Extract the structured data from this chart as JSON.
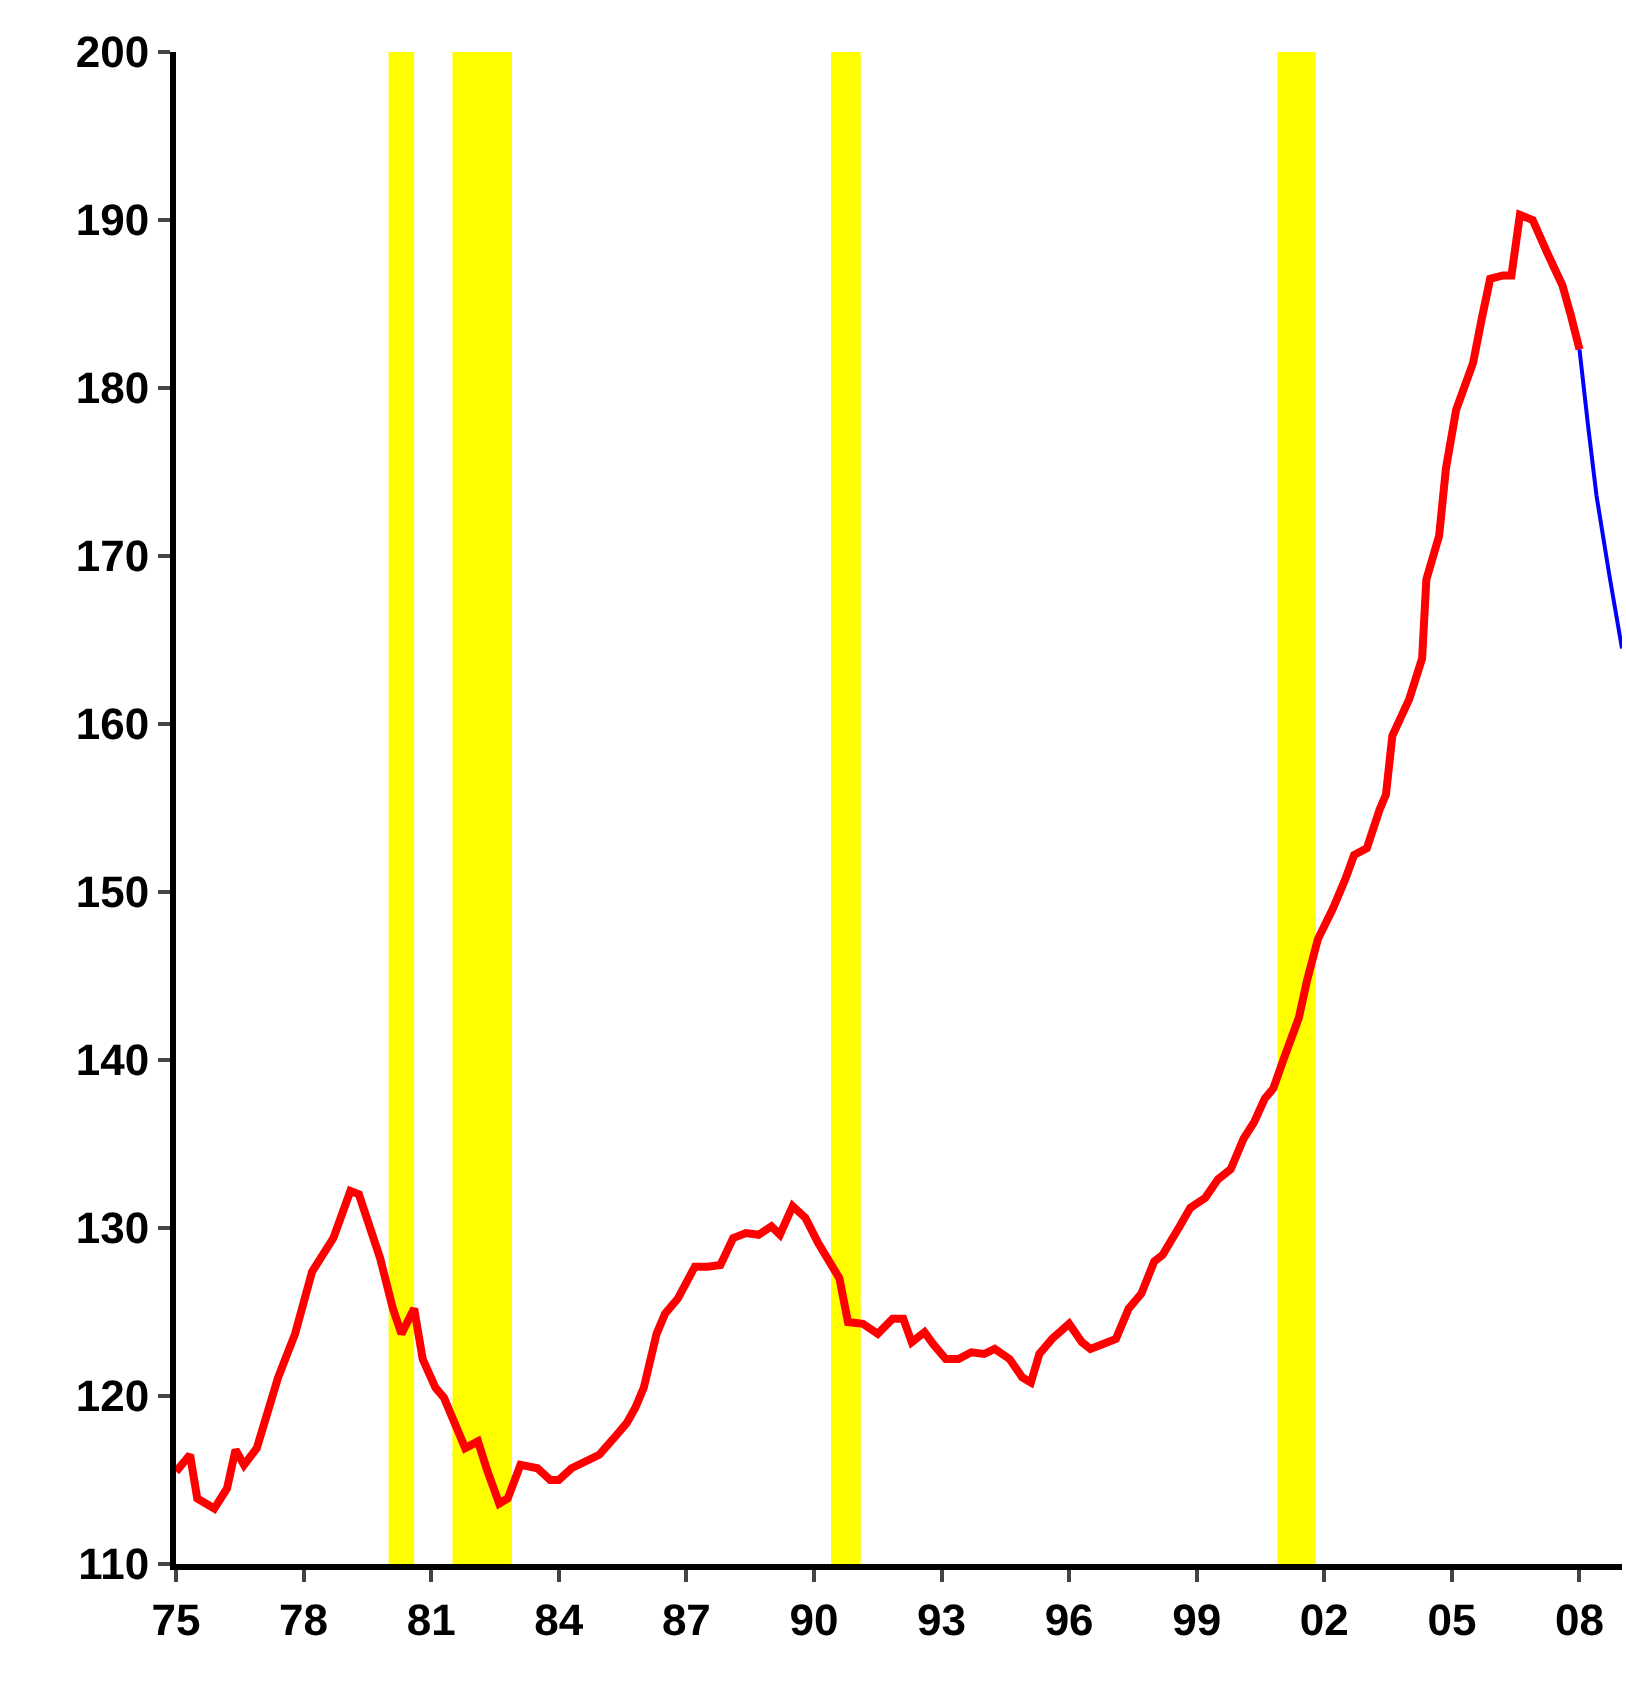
{
  "chart_data": {
    "type": "line",
    "xlim": [
      1975,
      2009
    ],
    "ylim": [
      110,
      200
    ],
    "xticks": [
      {
        "value": 1975,
        "label": "75"
      },
      {
        "value": 1978,
        "label": "78"
      },
      {
        "value": 1981,
        "label": "81"
      },
      {
        "value": 1984,
        "label": "84"
      },
      {
        "value": 1987,
        "label": "87"
      },
      {
        "value": 1990,
        "label": "90"
      },
      {
        "value": 1993,
        "label": "93"
      },
      {
        "value": 1996,
        "label": "96"
      },
      {
        "value": 1999,
        "label": "99"
      },
      {
        "value": 2002,
        "label": "02"
      },
      {
        "value": 2005,
        "label": "05"
      },
      {
        "value": 2008,
        "label": "08"
      }
    ],
    "yticks": [
      110,
      120,
      130,
      140,
      150,
      160,
      170,
      180,
      190,
      200
    ],
    "grid": false,
    "marker": "none",
    "line_style": "solid",
    "bands": [
      {
        "axis": "x",
        "from": 1980.0,
        "to": 1980.6,
        "color": "#ffff00"
      },
      {
        "axis": "x",
        "from": 1981.5,
        "to": 1982.9,
        "color": "#ffff00"
      },
      {
        "axis": "x",
        "from": 1990.4,
        "to": 1991.1,
        "color": "#ffff00"
      },
      {
        "axis": "x",
        "from": 2000.9,
        "to": 2001.8,
        "color": "#ffff00"
      }
    ],
    "series": [
      {
        "color": "#ff0000",
        "x": [
          1975.0,
          1975.33,
          1975.5,
          1975.9,
          1976.2,
          1976.4,
          1976.6,
          1976.9,
          1977.4,
          1977.8,
          1978.2,
          1978.7,
          1979.1,
          1979.3,
          1979.8,
          1980.1,
          1980.3,
          1980.6,
          1980.8,
          1981.1,
          1981.3,
          1981.5,
          1981.8,
          1982.1,
          1982.3,
          1982.6,
          1982.8,
          1983.1,
          1983.5,
          1983.8,
          1984.0,
          1984.3,
          1984.95,
          1985.3,
          1985.6,
          1985.8,
          1986.0,
          1986.3,
          1986.5,
          1986.8,
          1987.2,
          1987.5,
          1987.8,
          1988.1,
          1988.4,
          1988.7,
          1989.0,
          1989.2,
          1989.5,
          1989.8,
          1990.1,
          1990.6,
          1990.8,
          1991.15,
          1991.5,
          1991.85,
          1992.1,
          1992.3,
          1992.6,
          1992.8,
          1993.1,
          1993.4,
          1993.7,
          1994.0,
          1994.25,
          1994.6,
          1994.9,
          1995.1,
          1995.3,
          1995.6,
          1996.0,
          1996.3,
          1996.5,
          1996.8,
          1997.1,
          1997.4,
          1997.7,
          1998.0,
          1998.2,
          1998.6,
          1998.85,
          1999.2,
          1999.5,
          1999.8,
          2000.1,
          2000.35,
          2000.6,
          2000.8,
          2001.05,
          2001.4,
          2001.6,
          2001.85,
          2002.2,
          2002.5,
          2002.7,
          2003.0,
          2003.3,
          2003.45,
          2003.6,
          2004.0,
          2004.3,
          2004.4,
          2004.7,
          2004.86,
          2005.1,
          2005.5,
          2005.7,
          2005.9,
          2006.2,
          2006.4,
          2006.6,
          2006.9,
          2007.25,
          2007.6,
          2007.8,
          2008.0
        ],
        "values": [
          115.5,
          116.5,
          113.9,
          113.3,
          114.5,
          116.8,
          115.9,
          116.9,
          121.1,
          123.7,
          127.4,
          129.4,
          132.2,
          132.0,
          128.2,
          125.2,
          123.7,
          125.2,
          122.2,
          120.5,
          119.9,
          118.7,
          116.9,
          117.3,
          115.7,
          113.6,
          113.9,
          115.9,
          115.7,
          115.0,
          115.0,
          115.7,
          116.5,
          117.5,
          118.4,
          119.3,
          120.5,
          123.7,
          124.9,
          125.8,
          127.7,
          127.7,
          127.8,
          129.4,
          129.7,
          129.6,
          130.1,
          129.6,
          131.3,
          130.6,
          129.1,
          127.0,
          124.4,
          124.3,
          123.7,
          124.6,
          124.6,
          123.2,
          123.8,
          123.1,
          122.2,
          122.2,
          122.6,
          122.5,
          122.8,
          122.2,
          121.1,
          120.8,
          122.5,
          123.4,
          124.3,
          123.2,
          122.8,
          123.1,
          123.4,
          125.2,
          126.1,
          128.0,
          128.4,
          130.1,
          131.2,
          131.8,
          132.9,
          133.5,
          135.3,
          136.3,
          137.7,
          138.3,
          140.1,
          142.5,
          144.8,
          147.2,
          149.0,
          150.8,
          152.2,
          152.6,
          154.9,
          155.8,
          159.3,
          161.5,
          163.9,
          168.6,
          171.2,
          175.2,
          178.7,
          181.5,
          184.1,
          186.5,
          186.7,
          186.7,
          190.3,
          190.0,
          188.0,
          186.1,
          184.3,
          182.3
        ]
      },
      {
        "color": "#0000ff",
        "x": [
          2008.0,
          2008.2,
          2008.4,
          2008.7,
          2009.0
        ],
        "values": [
          182.3,
          177.8,
          173.6,
          168.9,
          164.5
        ]
      }
    ]
  }
}
